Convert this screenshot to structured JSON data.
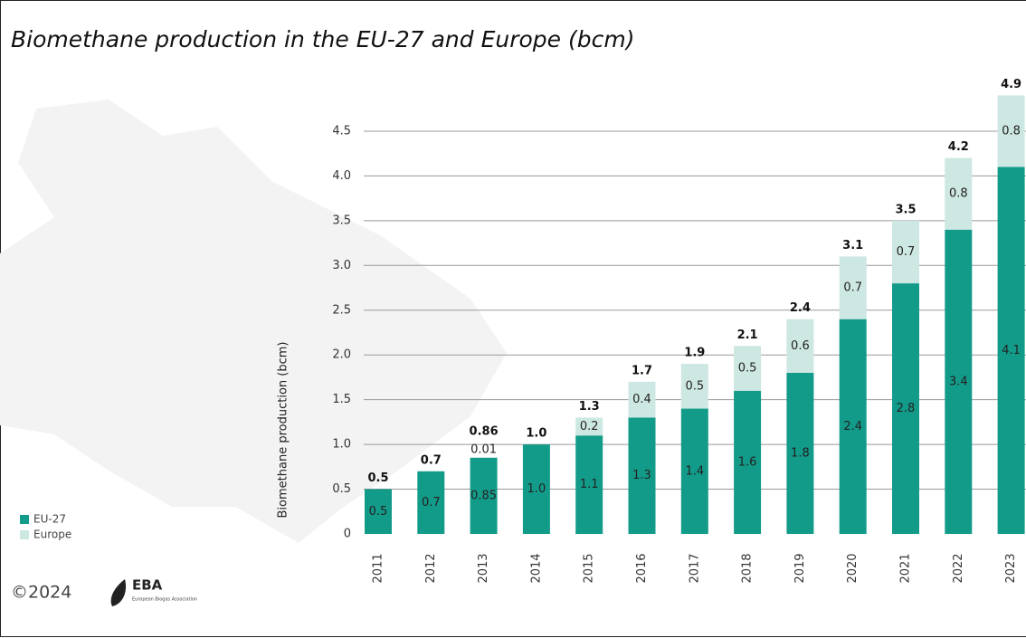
{
  "chart_data": {
    "type": "stacked_bar",
    "title": "Biomethane production in the EU-27 and Europe (bcm)",
    "y_label": "Biomethane production (bcm)",
    "categories": [
      "2011",
      "2012",
      "2013",
      "2014",
      "2015",
      "2016",
      "2017",
      "2018",
      "2019",
      "2020",
      "2021",
      "2022",
      "2023"
    ],
    "series": [
      {
        "name": "EU-27",
        "color": "#139b89",
        "label_color": "#ffffff",
        "values": [
          0.5,
          0.7,
          0.85,
          1.0,
          1.1,
          1.3,
          1.4,
          1.6,
          1.8,
          2.4,
          2.8,
          3.4,
          4.1
        ],
        "value_labels": [
          "0.5",
          "0.7",
          "0.85",
          "1.0",
          "1.1",
          "1.3",
          "1.4",
          "1.6",
          "1.8",
          "2.4",
          "2.8",
          "3.4",
          "4.1"
        ]
      },
      {
        "name": "Europe",
        "color": "#cde7e2",
        "label_color": "#444444",
        "values": [
          null,
          null,
          0.01,
          null,
          0.2,
          0.4,
          0.5,
          0.5,
          0.6,
          0.7,
          0.7,
          0.8,
          0.8
        ],
        "value_labels": [
          null,
          null,
          "0.01",
          null,
          "0.2",
          "0.4",
          "0.5",
          "0.5",
          "0.6",
          "0.7",
          "0.7",
          "0.8",
          "0.8"
        ]
      }
    ],
    "totals": {
      "values": [
        0.5,
        0.7,
        0.86,
        1.0,
        1.3,
        1.7,
        1.9,
        2.1,
        2.4,
        3.1,
        3.5,
        4.2,
        4.9
      ],
      "value_labels": [
        "0.5",
        "0.7",
        "0.86",
        "1.0",
        "1.3",
        "1.7",
        "1.9",
        "2.1",
        "2.4",
        "3.1",
        "3.5",
        "4.2",
        "4.9"
      ]
    },
    "ylim": [
      0,
      5
    ],
    "yticks": [
      0,
      0.5,
      {
        "value": 1,
        "label": "1.0"
      },
      1.5,
      {
        "value": 2,
        "label": "2.0"
      },
      2.5,
      {
        "value": 3,
        "label": "3.0"
      },
      3.5,
      {
        "value": 4,
        "label": "4.0"
      },
      4.5
    ],
    "grid": true,
    "legend": "lower left"
  },
  "footer": {
    "copyright": "©2024",
    "logo": "EBA",
    "logo_subtitle": "European Biogas Association"
  }
}
